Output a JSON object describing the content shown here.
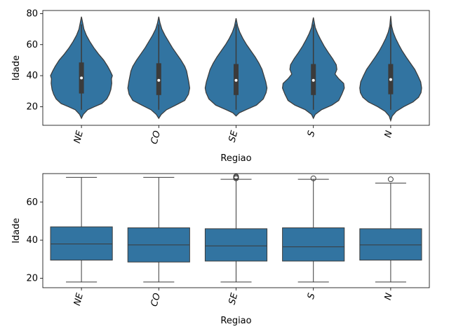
{
  "chart_data": [
    {
      "type": "violin",
      "xlabel": "Regiao",
      "ylabel": "Idade",
      "categories": [
        "NE",
        "CO",
        "SE",
        "S",
        "N"
      ],
      "ylim": [
        8,
        82
      ],
      "yticks": [
        20,
        40,
        60,
        80
      ],
      "color": "#3274a1",
      "line_color": "#3b3b3b",
      "xtick_rotation": 75,
      "violins": [
        {
          "category": "NE",
          "min": 12.5,
          "max": 78,
          "q1": 28.5,
          "median": 38.5,
          "q3": 48.5,
          "wlo": 18,
          "whi": 73,
          "profile": [
            [
              12.5,
              0.0
            ],
            [
              15,
              0.06
            ],
            [
              18,
              0.2
            ],
            [
              20,
              0.42
            ],
            [
              22,
              0.66
            ],
            [
              25,
              0.82
            ],
            [
              28,
              0.9
            ],
            [
              31,
              0.95
            ],
            [
              35,
              0.98
            ],
            [
              38,
              0.97
            ],
            [
              40,
              1.0
            ],
            [
              43,
              0.93
            ],
            [
              46,
              0.85
            ],
            [
              50,
              0.72
            ],
            [
              54,
              0.55
            ],
            [
              58,
              0.4
            ],
            [
              62,
              0.27
            ],
            [
              66,
              0.16
            ],
            [
              70,
              0.08
            ],
            [
              74,
              0.04
            ],
            [
              78,
              0.0
            ]
          ]
        },
        {
          "category": "CO",
          "min": 12.5,
          "max": 78,
          "q1": 27.5,
          "median": 37,
          "q3": 48,
          "wlo": 18,
          "whi": 73,
          "profile": [
            [
              12.5,
              0.0
            ],
            [
              15,
              0.08
            ],
            [
              18,
              0.25
            ],
            [
              21,
              0.55
            ],
            [
              24,
              0.84
            ],
            [
              28,
              0.96
            ],
            [
              32,
              1.0
            ],
            [
              36,
              0.97
            ],
            [
              40,
              0.93
            ],
            [
              43,
              0.9
            ],
            [
              46,
              0.84
            ],
            [
              50,
              0.72
            ],
            [
              54,
              0.58
            ],
            [
              58,
              0.44
            ],
            [
              62,
              0.32
            ],
            [
              66,
              0.2
            ],
            [
              70,
              0.1
            ],
            [
              74,
              0.04
            ],
            [
              78,
              0.0
            ]
          ]
        },
        {
          "category": "SE",
          "min": 14,
          "max": 77,
          "q1": 27.5,
          "median": 37,
          "q3": 47.5,
          "wlo": 18,
          "whi": 73,
          "profile": [
            [
              14,
              0.0
            ],
            [
              16,
              0.1
            ],
            [
              18,
              0.32
            ],
            [
              21,
              0.66
            ],
            [
              25,
              0.88
            ],
            [
              29,
              0.97
            ],
            [
              32,
              1.0
            ],
            [
              36,
              0.96
            ],
            [
              40,
              0.9
            ],
            [
              44,
              0.84
            ],
            [
              48,
              0.74
            ],
            [
              52,
              0.62
            ],
            [
              56,
              0.48
            ],
            [
              60,
              0.34
            ],
            [
              64,
              0.22
            ],
            [
              68,
              0.12
            ],
            [
              72,
              0.05
            ],
            [
              77,
              0.0
            ]
          ]
        },
        {
          "category": "S",
          "min": 12.5,
          "max": 77.5,
          "q1": 27.5,
          "median": 37,
          "q3": 47.5,
          "wlo": 18,
          "whi": 73,
          "profile": [
            [
              12.5,
              0.0
            ],
            [
              15,
              0.06
            ],
            [
              18,
              0.26
            ],
            [
              21,
              0.6
            ],
            [
              24,
              0.82
            ],
            [
              28,
              0.92
            ],
            [
              32,
              1.0
            ],
            [
              35,
              0.98
            ],
            [
              38,
              0.82
            ],
            [
              41,
              0.7
            ],
            [
              44,
              0.76
            ],
            [
              47,
              0.74
            ],
            [
              51,
              0.62
            ],
            [
              55,
              0.48
            ],
            [
              59,
              0.35
            ],
            [
              63,
              0.24
            ],
            [
              67,
              0.14
            ],
            [
              71,
              0.06
            ],
            [
              77.5,
              0.0
            ]
          ]
        },
        {
          "category": "N",
          "min": 11,
          "max": 78.5,
          "q1": 28,
          "median": 37.5,
          "q3": 47.5,
          "wlo": 18,
          "whi": 73,
          "profile": [
            [
              11,
              0.0
            ],
            [
              14,
              0.05
            ],
            [
              17,
              0.18
            ],
            [
              20,
              0.42
            ],
            [
              23,
              0.72
            ],
            [
              26,
              0.9
            ],
            [
              29,
              0.98
            ],
            [
              32,
              1.0
            ],
            [
              36,
              0.97
            ],
            [
              40,
              0.88
            ],
            [
              44,
              0.78
            ],
            [
              48,
              0.64
            ],
            [
              52,
              0.5
            ],
            [
              56,
              0.37
            ],
            [
              60,
              0.26
            ],
            [
              64,
              0.16
            ],
            [
              68,
              0.08
            ],
            [
              72,
              0.03
            ],
            [
              78.5,
              0.0
            ]
          ]
        }
      ]
    },
    {
      "type": "box",
      "xlabel": "Regiao",
      "ylabel": "Idade",
      "categories": [
        "NE",
        "CO",
        "SE",
        "S",
        "N"
      ],
      "ylim": [
        15,
        75
      ],
      "yticks": [
        20,
        40,
        60
      ],
      "color": "#3274a1",
      "line_color": "#3b3b3b",
      "xtick_rotation": 75,
      "boxes": [
        {
          "category": "NE",
          "whislo": 18,
          "q1": 29.5,
          "median": 38,
          "q3": 47,
          "whishi": 73,
          "fliers": []
        },
        {
          "category": "CO",
          "whislo": 18,
          "q1": 28.5,
          "median": 37.5,
          "q3": 46.5,
          "whishi": 73,
          "fliers": []
        },
        {
          "category": "SE",
          "whislo": 18,
          "q1": 29,
          "median": 37,
          "q3": 46,
          "whishi": 72,
          "fliers": [
            72.5,
            73,
            73.5
          ]
        },
        {
          "category": "S",
          "whislo": 18,
          "q1": 29,
          "median": 36.5,
          "q3": 46.5,
          "whishi": 72,
          "fliers": [
            72.5
          ]
        },
        {
          "category": "N",
          "whislo": 18,
          "q1": 29.5,
          "median": 37.5,
          "q3": 46,
          "whishi": 70,
          "fliers": [
            72
          ]
        }
      ]
    }
  ]
}
